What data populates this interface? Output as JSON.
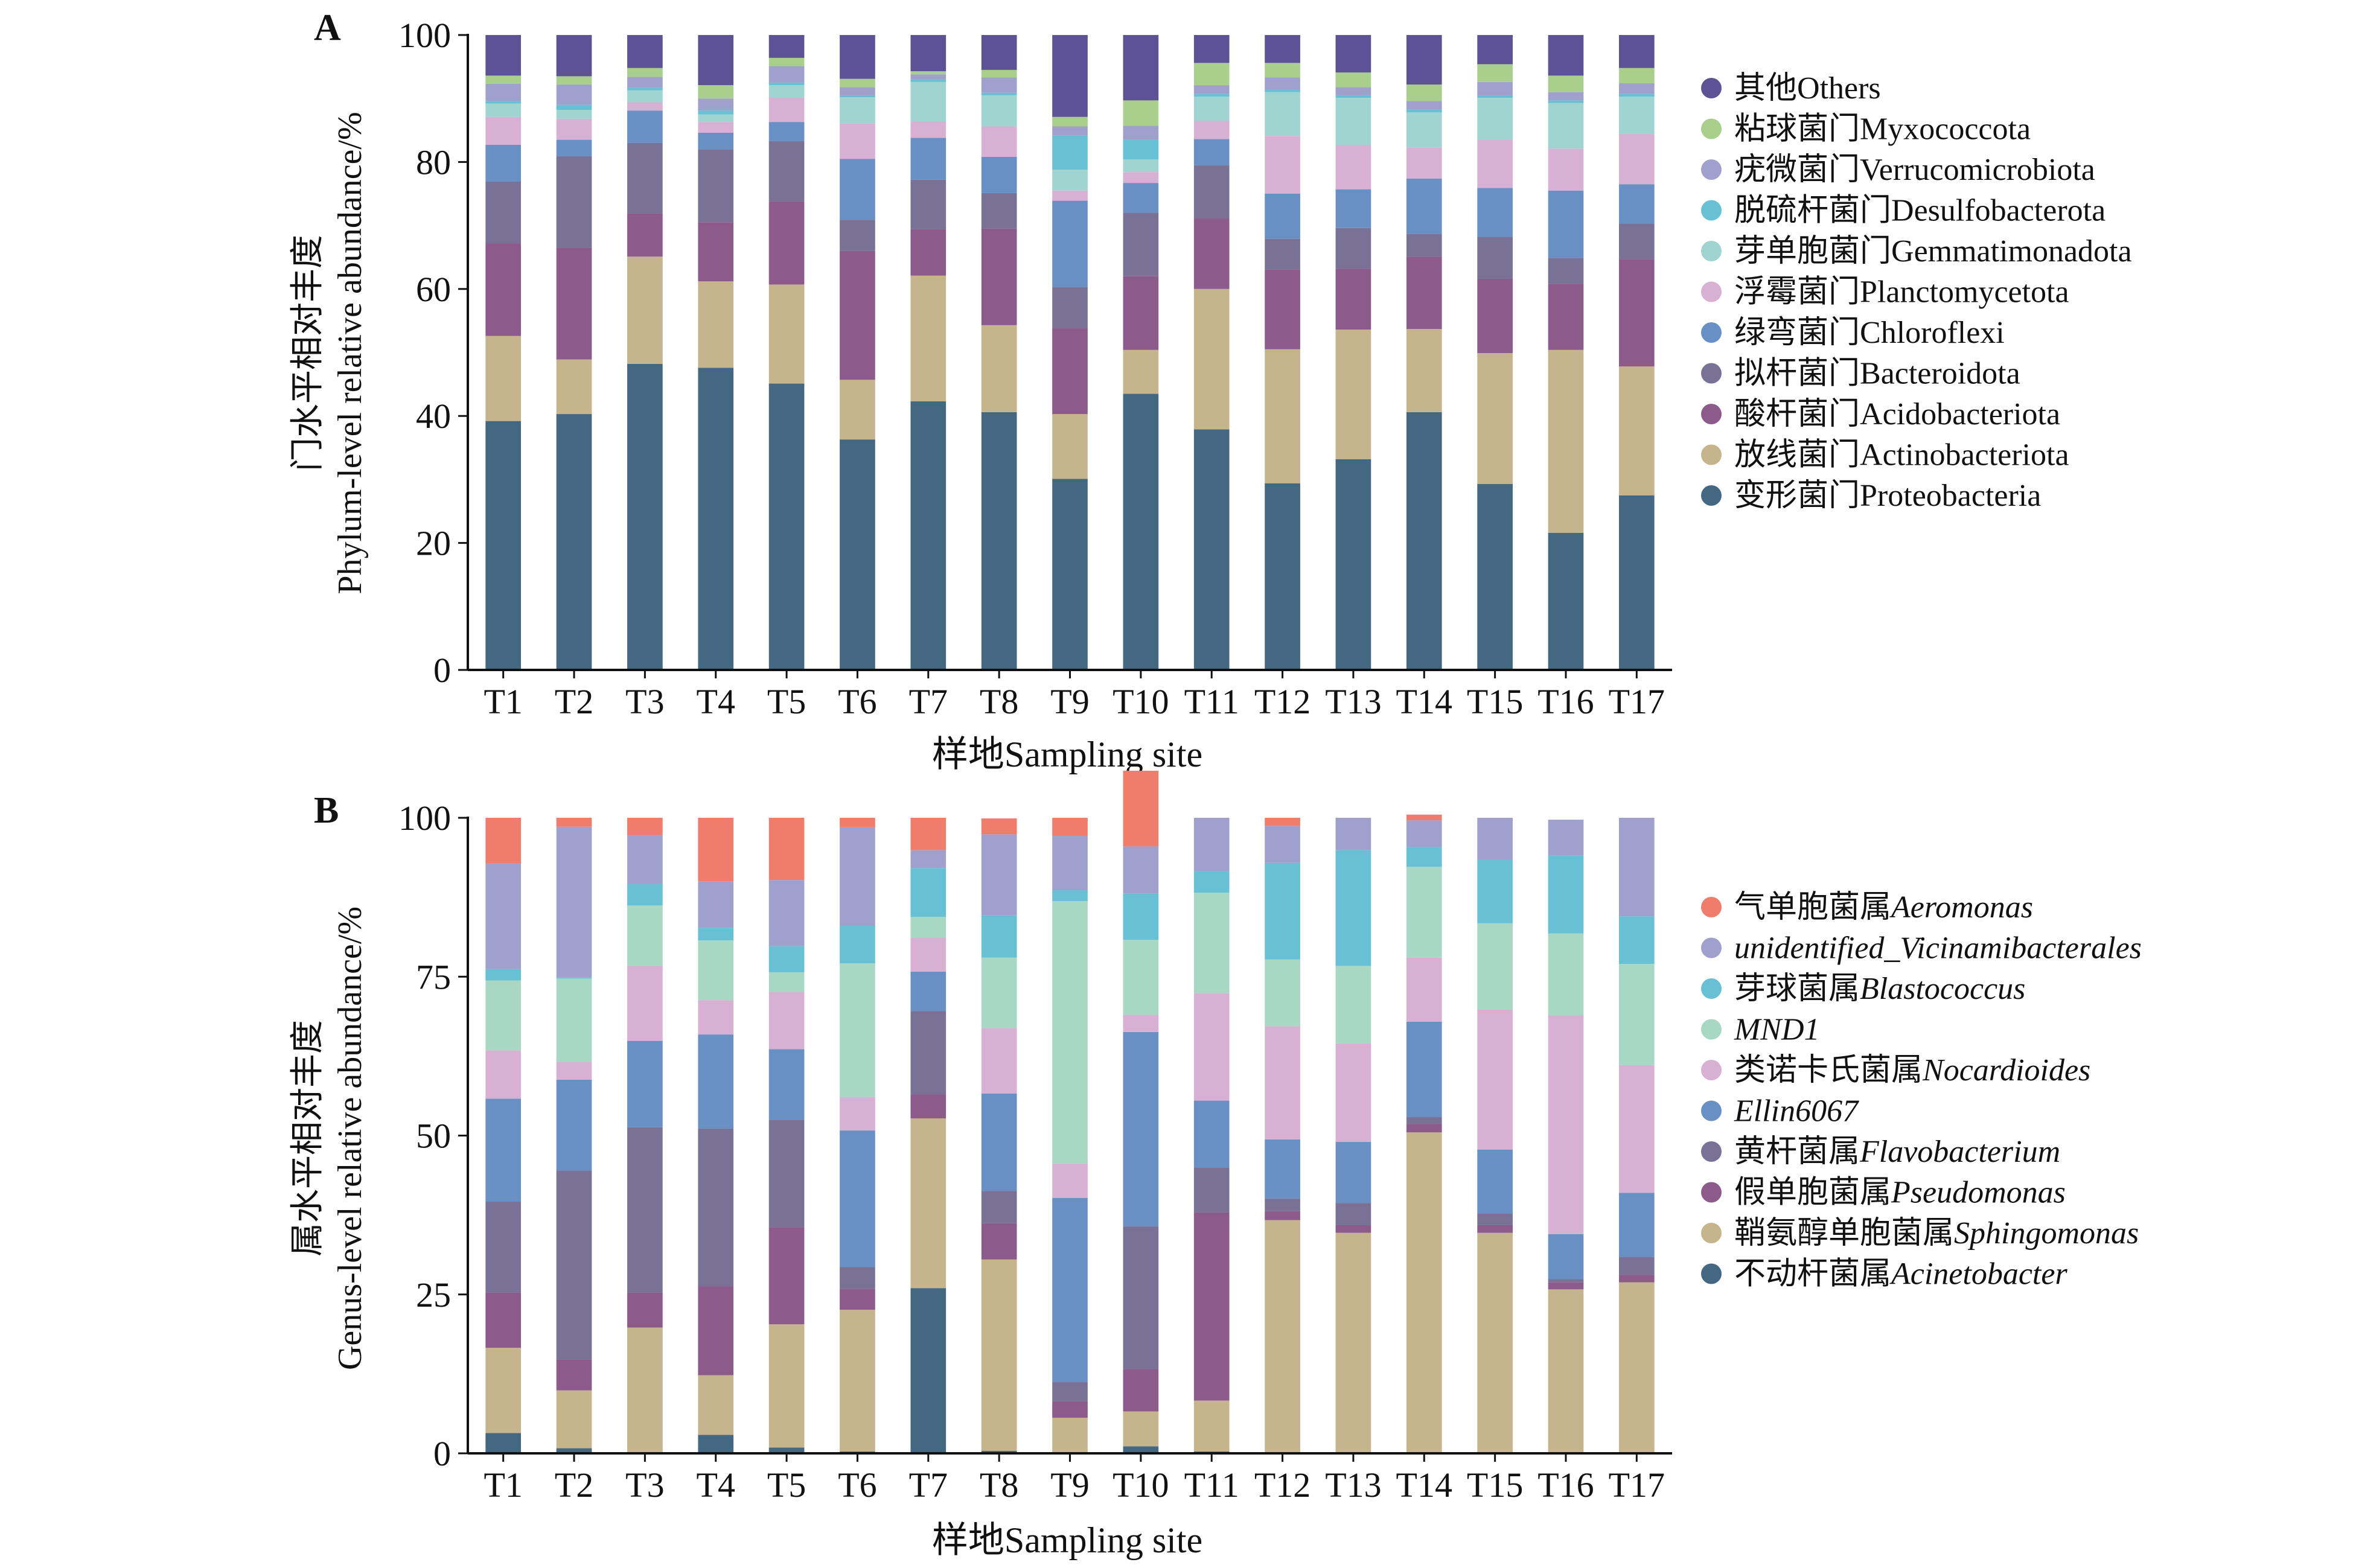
{
  "xlabel": "样地Sampling site",
  "chart_data": [
    {
      "type": "bar",
      "stacked": true,
      "panel_label": "A",
      "ylabel_cn": "门水平相对丰度",
      "ylabel_en": "Phylum-level relative abundance/%",
      "xlabel": "样地Sampling site",
      "ylim": [
        0,
        100
      ],
      "yticks": [
        0,
        20,
        40,
        60,
        80,
        100
      ],
      "legend_position": "right",
      "categories": [
        "T1",
        "T2",
        "T3",
        "T4",
        "T5",
        "T6",
        "T7",
        "T8",
        "T9",
        "T10",
        "T11",
        "T12",
        "T13",
        "T14",
        "T15",
        "T16",
        "T17"
      ],
      "series": [
        {
          "name_cn": "变形菌门",
          "name_latin": "Proteobacteria",
          "italic": false,
          "color": "#456882",
          "values": [
            39.2,
            40.3,
            48.2,
            47.6,
            45.1,
            36.3,
            42.3,
            40.6,
            30.1,
            43.5,
            37.9,
            29.4,
            33.2,
            40.6,
            29.3,
            21.6,
            27.5
          ]
        },
        {
          "name_cn": "放线菌门",
          "name_latin": "Actinobacteriota",
          "italic": false,
          "color": "#c6b48c",
          "values": [
            13.4,
            8.6,
            16.9,
            13.6,
            15.6,
            9.4,
            19.8,
            13.7,
            10.2,
            6.9,
            22.1,
            21.1,
            20.4,
            13.1,
            20.6,
            28.8,
            20.3
          ]
        },
        {
          "name_cn": "酸杆菌门",
          "name_latin": "Acidobacteriota",
          "italic": false,
          "color": "#8c5b8c",
          "values": [
            14.6,
            17.6,
            6.8,
            9.3,
            13.1,
            20.3,
            7.3,
            15.2,
            13.5,
            11.6,
            11.1,
            12.6,
            9.6,
            11.4,
            11.7,
            10.4,
            16.9
          ]
        },
        {
          "name_cn": "拟杆菌门",
          "name_latin": "Bacteroidota",
          "italic": false,
          "color": "#7a7296",
          "values": [
            9.7,
            14.4,
            11.1,
            11.5,
            9.5,
            4.9,
            7.8,
            5.6,
            6.5,
            10.0,
            8.4,
            4.8,
            6.4,
            3.6,
            6.6,
            4.1,
            5.6
          ]
        },
        {
          "name_cn": "绿弯菌门",
          "name_latin": "Chloroflexi",
          "italic": false,
          "color": "#6890c4",
          "values": [
            5.8,
            2.6,
            5.1,
            2.6,
            3.0,
            9.6,
            6.6,
            5.7,
            13.6,
            4.7,
            4.1,
            7.1,
            6.1,
            8.7,
            7.7,
            10.6,
            6.2
          ]
        },
        {
          "name_cn": "浮霉菌门",
          "name_latin": "Planctomycetota",
          "italic": false,
          "color": "#d8b0d4",
          "values": [
            4.4,
            3.3,
            1.3,
            1.7,
            3.9,
            5.6,
            2.6,
            4.8,
            1.6,
            1.7,
            2.9,
            9.1,
            7.0,
            4.9,
            7.6,
            6.6,
            7.9
          ]
        },
        {
          "name_cn": "芽单胞菌门",
          "name_latin": "Gemmatimonadota",
          "italic": false,
          "color": "#a0d4d0",
          "values": [
            2.1,
            1.4,
            1.9,
            1.2,
            1.9,
            4.1,
            6.2,
            4.9,
            3.3,
            2.0,
            3.8,
            6.9,
            7.4,
            5.5,
            6.6,
            7.2,
            5.9
          ]
        },
        {
          "name_cn": "脱硫杆菌门",
          "name_latin": "Desulfobacterota",
          "italic": false,
          "color": "#68c0d4",
          "values": [
            0.4,
            0.8,
            0.4,
            0.6,
            0.4,
            0.3,
            0.4,
            0.4,
            5.4,
            3.1,
            0.4,
            0.4,
            0.4,
            0.5,
            0.4,
            0.4,
            0.4
          ]
        },
        {
          "name_cn": "疣微菌门",
          "name_latin": "Verrucomicrobiota",
          "italic": false,
          "color": "#a0a0cc",
          "values": [
            2.7,
            3.2,
            1.7,
            1.9,
            2.6,
            1.3,
            0.8,
            2.4,
            1.4,
            2.2,
            1.4,
            1.9,
            1.3,
            1.3,
            2.1,
            1.3,
            1.7
          ]
        },
        {
          "name_cn": "粘球菌门",
          "name_latin": "Myxococcota",
          "italic": false,
          "color": "#a8d08c",
          "values": [
            1.3,
            1.3,
            1.4,
            2.1,
            1.3,
            1.3,
            0.5,
            1.2,
            1.5,
            4.0,
            3.5,
            2.3,
            2.3,
            2.6,
            2.8,
            2.6,
            2.4
          ]
        },
        {
          "name_cn": "其他",
          "name_latin": "Others",
          "italic": false,
          "color": "#5c5294",
          "values": [
            6.4,
            6.5,
            5.2,
            7.9,
            3.6,
            6.9,
            5.7,
            5.5,
            12.9,
            10.3,
            4.4,
            4.4,
            5.9,
            7.8,
            4.6,
            6.4,
            5.2
          ]
        }
      ]
    },
    {
      "type": "bar",
      "stacked": true,
      "panel_label": "B",
      "ylabel_cn": "属水平相对丰度",
      "ylabel_en": "Genus-level relative abundance/%",
      "xlabel": "样地Sampling site",
      "ylim": [
        0,
        100
      ],
      "yticks": [
        0,
        25,
        50,
        75,
        100
      ],
      "legend_position": "right",
      "categories": [
        "T1",
        "T2",
        "T3",
        "T4",
        "T5",
        "T6",
        "T7",
        "T8",
        "T9",
        "T10",
        "T11",
        "T12",
        "T13",
        "T14",
        "T15",
        "T16",
        "T17"
      ],
      "series": [
        {
          "name_cn": "不动杆菌属",
          "name_latin": "Acinetobacter",
          "italic": true,
          "color": "#456882",
          "values": [
            3.2,
            0.8,
            0.2,
            2.9,
            0.9,
            0.3,
            26.0,
            0.4,
            0.2,
            1.1,
            0.3,
            0.2,
            0.2,
            0.2,
            0.2,
            0.2,
            0.2
          ]
        },
        {
          "name_cn": "鞘氨醇单胞菌属",
          "name_latin": "Sphingomonas",
          "italic": true,
          "color": "#c6b48c",
          "values": [
            13.4,
            9.1,
            19.6,
            9.4,
            19.4,
            22.3,
            26.7,
            30.1,
            5.4,
            5.5,
            8.0,
            36.5,
            34.5,
            50.3,
            34.5,
            25.6,
            26.7
          ]
        },
        {
          "name_cn": "假单胞菌属",
          "name_latin": "Pseudomonas",
          "italic": true,
          "color": "#8c5b8c",
          "values": [
            8.7,
            4.9,
            5.5,
            14.0,
            15.3,
            3.3,
            3.8,
            5.7,
            2.6,
            6.6,
            29.6,
            1.4,
            1.2,
            1.3,
            1.2,
            1.1,
            1.2
          ]
        },
        {
          "name_cn": "黄杆菌属",
          "name_latin": "Flavobacterium",
          "italic": true,
          "color": "#7a7296",
          "values": [
            14.3,
            29.7,
            26.0,
            24.8,
            16.9,
            3.4,
            13.1,
            5.1,
            3.0,
            22.5,
            7.1,
            2.0,
            3.5,
            1.1,
            1.8,
            0.5,
            2.8
          ]
        },
        {
          "name_cn": "",
          "name_latin": "Ellin6067",
          "italic": true,
          "color": "#6890c4",
          "values": [
            16.2,
            14.3,
            13.6,
            14.8,
            11.1,
            21.5,
            6.2,
            15.3,
            29.0,
            30.6,
            10.5,
            9.3,
            9.6,
            15.0,
            10.1,
            7.1,
            10.1
          ]
        },
        {
          "name_cn": "类诺卡氏菌属",
          "name_latin": "Nocardioides",
          "italic": true,
          "color": "#d8b0d4",
          "values": [
            7.6,
            2.8,
            11.8,
            5.4,
            9.0,
            5.3,
            5.3,
            10.3,
            5.4,
            2.7,
            16.9,
            17.8,
            15.5,
            10.1,
            22.0,
            34.4,
            20.1
          ]
        },
        {
          "name_cn": "",
          "name_latin": "MND1",
          "italic": true,
          "color": "#a8d8c4",
          "values": [
            11.0,
            13.1,
            9.5,
            9.4,
            3.1,
            21.0,
            3.3,
            11.1,
            41.3,
            11.8,
            15.8,
            10.5,
            12.2,
            14.3,
            13.6,
            12.9,
            15.9
          ]
        },
        {
          "name_cn": "芽球菌属",
          "name_latin": "Blastococcus",
          "italic": true,
          "color": "#68c0d4",
          "values": [
            1.8,
            0.2,
            3.4,
            2.0,
            4.1,
            5.9,
            7.7,
            6.7,
            1.7,
            7.3,
            3.4,
            15.2,
            18.2,
            3.1,
            10.0,
            12.3,
            7.5
          ]
        },
        {
          "name_cn": "",
          "name_latin": "unidentified_Vicinamibacterales",
          "italic": true,
          "color": "#a0a0cc",
          "values": [
            16.6,
            23.7,
            7.7,
            7.3,
            10.4,
            15.5,
            2.8,
            12.7,
            8.6,
            7.4,
            8.4,
            5.8,
            5.1,
            4.2,
            6.6,
            5.6,
            15.5
          ]
        },
        {
          "name_cn": "气单胞菌属",
          "name_latin": "Aeromonas",
          "italic": true,
          "color": "#f07c6c",
          "values": [
            7.2,
            1.4,
            2.7,
            10.0,
            9.8,
            1.5,
            5.1,
            2.5,
            2.8,
            11.9,
            0.0,
            1.3,
            0.0,
            0.9,
            0.0,
            0.0,
            0.0
          ]
        }
      ]
    }
  ]
}
